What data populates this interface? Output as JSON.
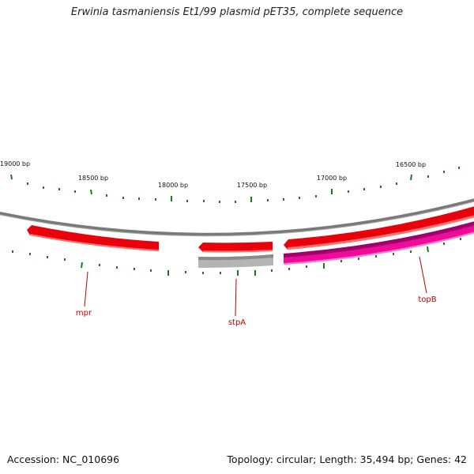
{
  "title": "Erwinia tasmaniensis Et1/99 plasmid pET35, complete sequence",
  "footer": {
    "accession": "Accession: NC_010696",
    "summary": "Topology: circular; Length: 35,494 bp; Genes: 42"
  },
  "scale_labels": [
    "19000 bp",
    "18500 bp",
    "18000 bp",
    "17500 bp",
    "17000 bp",
    "16500 bp"
  ],
  "genes": [
    {
      "name": "mpr",
      "color": "#e8000b"
    },
    {
      "name": "stpA",
      "color": "#e8000b"
    },
    {
      "name": "topB",
      "color": "#ee0b9a"
    }
  ],
  "colors": {
    "backbone": "#7a7a7a",
    "cds": "#e8000b",
    "gene_grey": "#b4b4b4",
    "gene_pink": "#ee0b9a",
    "tick": "#1a7a1a",
    "label": "#c00000"
  }
}
